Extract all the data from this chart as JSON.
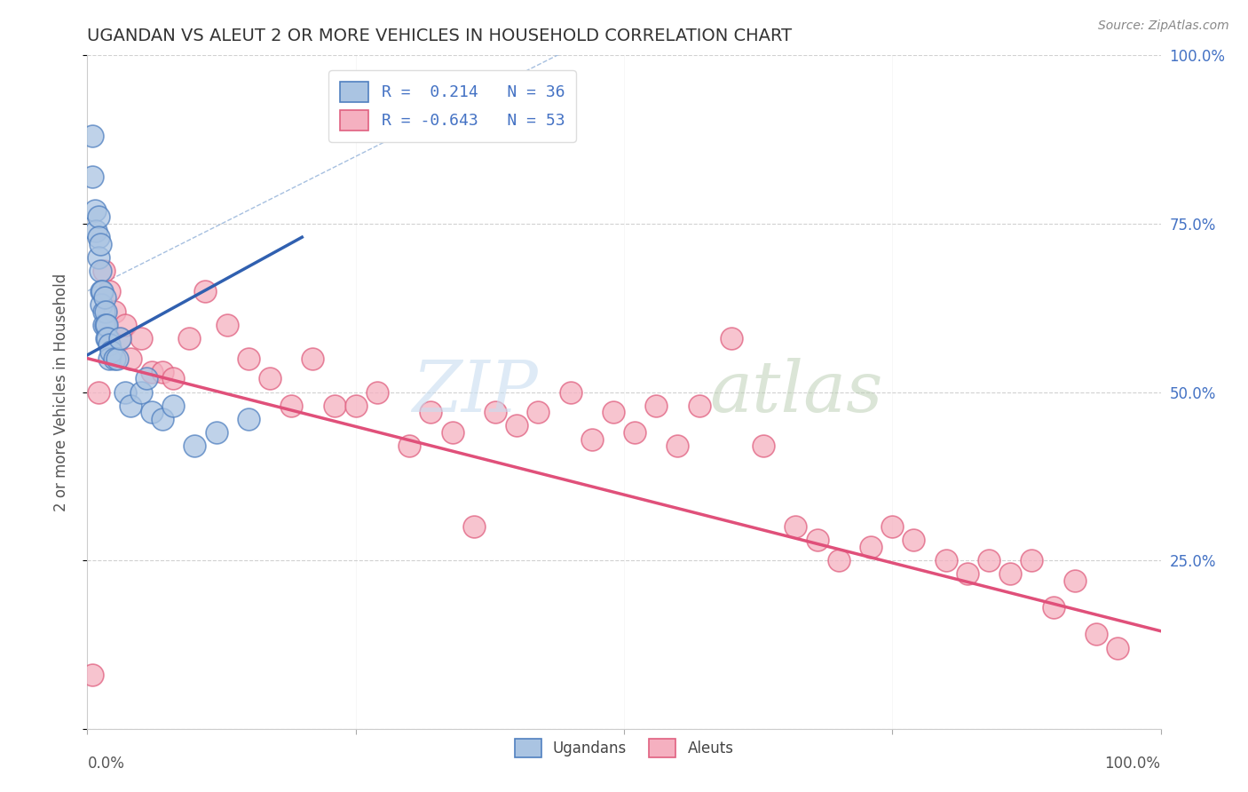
{
  "title": "UGANDAN VS ALEUT 2 OR MORE VEHICLES IN HOUSEHOLD CORRELATION CHART",
  "source": "Source: ZipAtlas.com",
  "ylabel": "2 or more Vehicles in Household",
  "legend_ugandan": "R =  0.214   N = 36",
  "legend_aleut": "R = -0.643   N = 53",
  "ugandan_color": "#aac4e2",
  "aleut_color": "#f5b0c0",
  "ugandan_edge_color": "#5080c0",
  "aleut_edge_color": "#e06080",
  "ugandan_line_color": "#3060b0",
  "aleut_line_color": "#e0507a",
  "diagonal_color": "#90b0d8",
  "title_color": "#333333",
  "source_color": "#888888",
  "tick_color_right": "#4472c4",
  "legend_text_color": "#4472c4",
  "ugandan_x": [
    0.005,
    0.005,
    0.007,
    0.008,
    0.01,
    0.01,
    0.01,
    0.012,
    0.012,
    0.013,
    0.013,
    0.014,
    0.015,
    0.015,
    0.016,
    0.017,
    0.017,
    0.018,
    0.018,
    0.019,
    0.02,
    0.02,
    0.022,
    0.025,
    0.028,
    0.03,
    0.035,
    0.04,
    0.05,
    0.055,
    0.06,
    0.07,
    0.08,
    0.1,
    0.12,
    0.15
  ],
  "ugandan_y": [
    0.88,
    0.82,
    0.77,
    0.74,
    0.76,
    0.73,
    0.7,
    0.72,
    0.68,
    0.65,
    0.63,
    0.65,
    0.62,
    0.6,
    0.64,
    0.62,
    0.6,
    0.58,
    0.6,
    0.58,
    0.57,
    0.55,
    0.56,
    0.55,
    0.55,
    0.58,
    0.5,
    0.48,
    0.5,
    0.52,
    0.47,
    0.46,
    0.48,
    0.42,
    0.44,
    0.46
  ],
  "aleut_x": [
    0.005,
    0.01,
    0.015,
    0.02,
    0.025,
    0.03,
    0.035,
    0.04,
    0.05,
    0.06,
    0.07,
    0.08,
    0.095,
    0.11,
    0.13,
    0.15,
    0.17,
    0.19,
    0.21,
    0.23,
    0.25,
    0.27,
    0.3,
    0.32,
    0.34,
    0.36,
    0.38,
    0.4,
    0.42,
    0.45,
    0.47,
    0.49,
    0.51,
    0.53,
    0.55,
    0.57,
    0.6,
    0.63,
    0.66,
    0.68,
    0.7,
    0.73,
    0.75,
    0.77,
    0.8,
    0.82,
    0.84,
    0.86,
    0.88,
    0.9,
    0.92,
    0.94,
    0.96
  ],
  "aleut_y": [
    0.08,
    0.5,
    0.68,
    0.65,
    0.62,
    0.58,
    0.6,
    0.55,
    0.58,
    0.53,
    0.53,
    0.52,
    0.58,
    0.65,
    0.6,
    0.55,
    0.52,
    0.48,
    0.55,
    0.48,
    0.48,
    0.5,
    0.42,
    0.47,
    0.44,
    0.3,
    0.47,
    0.45,
    0.47,
    0.5,
    0.43,
    0.47,
    0.44,
    0.48,
    0.42,
    0.48,
    0.58,
    0.42,
    0.3,
    0.28,
    0.25,
    0.27,
    0.3,
    0.28,
    0.25,
    0.23,
    0.25,
    0.23,
    0.25,
    0.18,
    0.22,
    0.14,
    0.12
  ],
  "ugandan_line_x0": 0.0,
  "ugandan_line_x1": 0.2,
  "ugandan_line_y0": 0.555,
  "ugandan_line_y1": 0.73,
  "aleut_line_x0": 0.0,
  "aleut_line_x1": 1.0,
  "aleut_line_y0": 0.55,
  "aleut_line_y1": 0.145,
  "xmin": 0.0,
  "xmax": 1.0,
  "ymin": 0.0,
  "ymax": 1.0
}
